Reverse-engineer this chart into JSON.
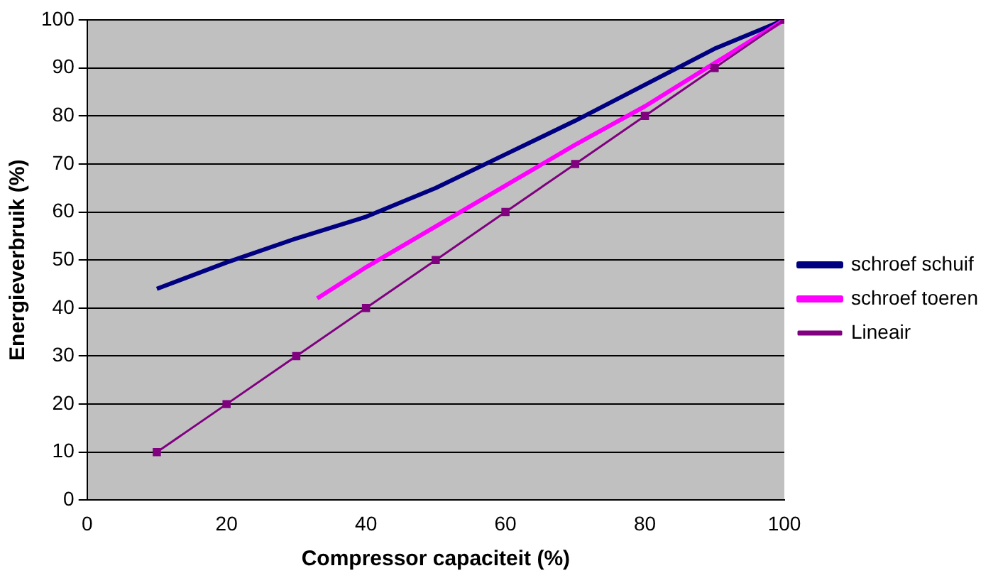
{
  "chart_data": {
    "type": "line",
    "xlabel": "Compressor capaciteit (%)",
    "ylabel": "Energieverbruik (%)",
    "series": [
      {
        "name": "schroef schuif",
        "color": "#000080",
        "marker": "none",
        "x": [
          10,
          20,
          30,
          40,
          50,
          60,
          70,
          80,
          90,
          100
        ],
        "values": [
          44,
          49.5,
          54.5,
          59,
          65,
          72,
          79,
          86.5,
          94,
          100
        ]
      },
      {
        "name": "schroef toeren",
        "color": "#ff00ff",
        "marker": "none",
        "x": [
          33,
          40,
          50,
          60,
          70,
          80,
          90,
          100
        ],
        "values": [
          42,
          48.5,
          57,
          65.5,
          74,
          82,
          91,
          100
        ]
      },
      {
        "name": "Lineair",
        "color": "#800080",
        "marker": "square",
        "x": [
          10,
          20,
          30,
          40,
          50,
          60,
          70,
          80,
          90,
          100
        ],
        "values": [
          10,
          20,
          30,
          40,
          50,
          60,
          70,
          80,
          90,
          100
        ]
      }
    ],
    "xlim": [
      0,
      100
    ],
    "xticks": [
      0,
      20,
      40,
      60,
      80,
      100
    ],
    "ylim": [
      0,
      100
    ],
    "yticks": [
      0,
      10,
      20,
      30,
      40,
      50,
      60,
      70,
      80,
      90,
      100
    ],
    "grid": "y",
    "legend": "right"
  }
}
